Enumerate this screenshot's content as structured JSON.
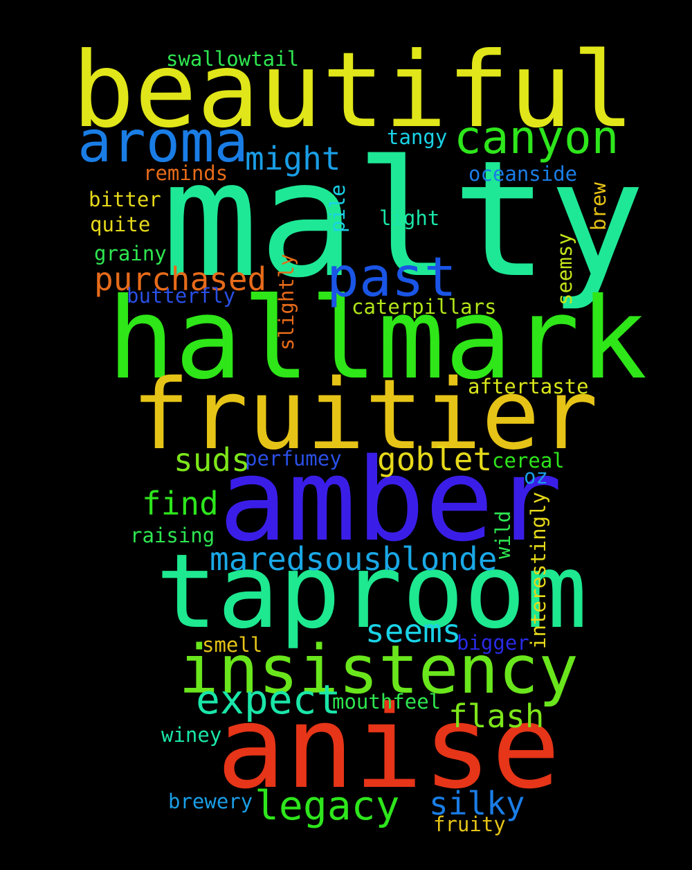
{
  "words": {
    "beautiful": {
      "text": "beautiful",
      "color": "#e0e619"
    },
    "malty": {
      "text": "malty",
      "color": "#1ee896"
    },
    "hallmark": {
      "text": "hallmark",
      "color": "#2ee618"
    },
    "fruitier": {
      "text": "fruitier",
      "color": "#e6c417"
    },
    "amber": {
      "text": "amber",
      "color": "#3a1ee8"
    },
    "taproom": {
      "text": "taproom",
      "color": "#1ee890"
    },
    "anise": {
      "text": "anise",
      "color": "#e63518"
    },
    "insistency": {
      "text": "insistency",
      "color": "#6ae61c"
    },
    "aroma": {
      "text": "aroma",
      "color": "#1a7de6"
    },
    "canyon": {
      "text": "canyon",
      "color": "#2ee61c"
    },
    "past": {
      "text": "past",
      "color": "#1a55e6"
    },
    "purchased": {
      "text": "purchased",
      "color": "#e66b1a"
    },
    "might": {
      "text": "might",
      "color": "#1a9ee6"
    },
    "swallowtail": {
      "text": "swallowtail",
      "color": "#2ee650"
    },
    "tangy": {
      "text": "tangy",
      "color": "#1ad2e6"
    },
    "reminds": {
      "text": "reminds",
      "color": "#e66b1a"
    },
    "oceanside": {
      "text": "oceanside",
      "color": "#1a7de6"
    },
    "bitter": {
      "text": "bitter",
      "color": "#e6d91a"
    },
    "quite": {
      "text": "quite",
      "color": "#e6d91a"
    },
    "light": {
      "text": "light",
      "color": "#1ae6a8"
    },
    "grainy": {
      "text": "grainy",
      "color": "#2ee650"
    },
    "butterfly": {
      "text": "butterfly",
      "color": "#2a4fe6"
    },
    "caterpillars": {
      "text": "caterpillars",
      "color": "#b2e61a"
    },
    "aftertaste": {
      "text": "aftertaste",
      "color": "#d9e61a"
    },
    "suds": {
      "text": "suds",
      "color": "#7de61a"
    },
    "perfumey": {
      "text": "perfumey",
      "color": "#2a4fe6"
    },
    "goblet": {
      "text": "goblet",
      "color": "#e6d91a"
    },
    "cereal": {
      "text": "cereal",
      "color": "#2ee61c"
    },
    "oz": {
      "text": "oz",
      "color": "#1a9ee6"
    },
    "find": {
      "text": "find",
      "color": "#2ee61c"
    },
    "raising": {
      "text": "raising",
      "color": "#2ee650"
    },
    "maredsousblonde": {
      "text": "maredsousblonde",
      "color": "#1aa8e6"
    },
    "seems": {
      "text": "seems",
      "color": "#1ad2e6"
    },
    "smell": {
      "text": "smell",
      "color": "#e6c417"
    },
    "bigger": {
      "text": "bigger",
      "color": "#2a2ae6"
    },
    "expect": {
      "text": "expect",
      "color": "#1ae6a8"
    },
    "mouthfeel": {
      "text": "mouthfeel",
      "color": "#2ee650"
    },
    "flash": {
      "text": "flash",
      "color": "#7de61a"
    },
    "winey": {
      "text": "winey",
      "color": "#1ae6a8"
    },
    "legacy": {
      "text": "legacy",
      "color": "#2ee61c"
    },
    "silky": {
      "text": "silky",
      "color": "#1a7de6"
    },
    "brewery": {
      "text": "brewery",
      "color": "#1a9ee6"
    },
    "fruity": {
      "text": "fruity",
      "color": "#e6c417"
    },
    "pile": {
      "text": "pile",
      "color": "#1ad2e6"
    },
    "brew": {
      "text": "brew",
      "color": "#e6c417"
    },
    "seemsy": {
      "text": "seemsy",
      "color": "#c4e61a"
    },
    "slightly": {
      "text": "slightly",
      "color": "#e66b1a"
    },
    "wild": {
      "text": "wild",
      "color": "#2ee650"
    },
    "interestingly": {
      "text": "interestingly",
      "color": "#e6d91a"
    }
  }
}
